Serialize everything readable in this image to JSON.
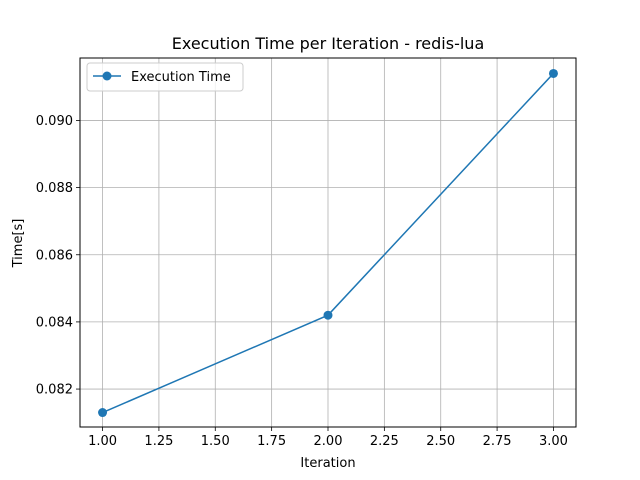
{
  "chart_data": {
    "type": "line",
    "title": "Execution Time per Iteration - redis-lua",
    "xlabel": "Iteration",
    "ylabel": "Time[s]",
    "xlim": [
      0.9,
      3.1
    ],
    "ylim": [
      0.08087,
      0.09186
    ],
    "xticks": [
      1.0,
      1.25,
      1.5,
      1.75,
      2.0,
      2.25,
      2.5,
      2.75,
      3.0
    ],
    "xtick_labels": [
      "1.00",
      "1.25",
      "1.50",
      "1.75",
      "2.00",
      "2.25",
      "2.50",
      "2.75",
      "3.00"
    ],
    "yticks": [
      0.082,
      0.084,
      0.086,
      0.088,
      0.09
    ],
    "ytick_labels": [
      "0.082",
      "0.084",
      "0.086",
      "0.088",
      "0.090"
    ],
    "grid": true,
    "legend_position": "top-left",
    "series": [
      {
        "name": "Execution Time",
        "color": "#1f77b4",
        "marker": "circle",
        "x": [
          1.0,
          2.0,
          3.0
        ],
        "y": [
          0.0813,
          0.0842,
          0.0914
        ]
      }
    ]
  }
}
